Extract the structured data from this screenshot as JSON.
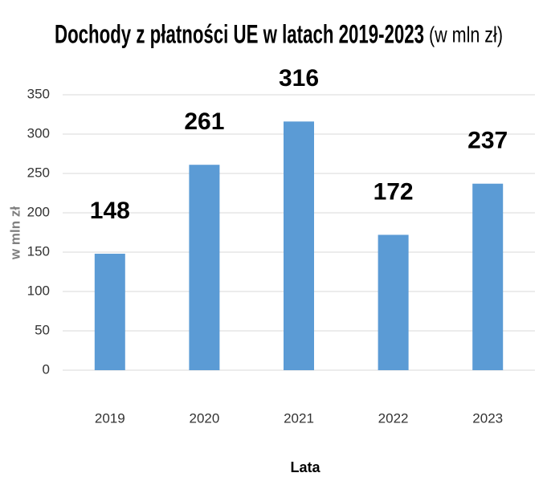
{
  "chart_data": {
    "type": "bar",
    "title": "Dochody z płatności UE w latach 2019-2023",
    "subtitle": "(w mln zł)",
    "x_label": "Lata",
    "y_label": "w mln zł",
    "categories": [
      "2019",
      "2020",
      "2021",
      "2022",
      "2023"
    ],
    "values": [
      148,
      261,
      316,
      172,
      237
    ],
    "color": "#5b9bd5",
    "ylim": [
      0,
      350
    ],
    "yticks": [
      0,
      50,
      100,
      150,
      200,
      250,
      300,
      350
    ],
    "grid": true
  }
}
